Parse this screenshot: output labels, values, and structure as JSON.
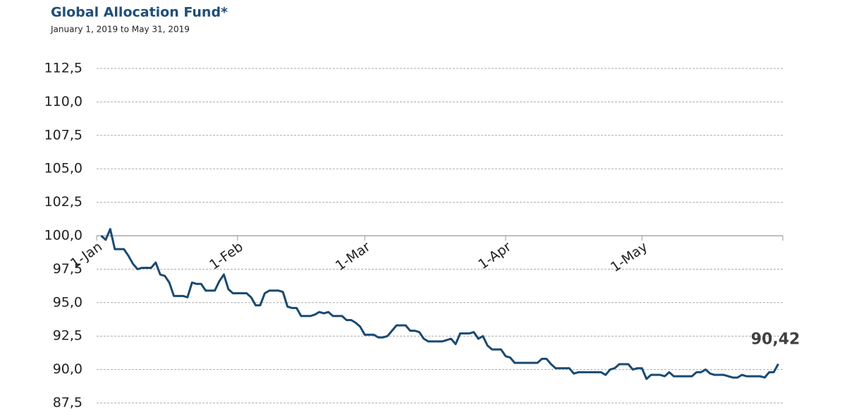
{
  "chart_data": {
    "type": "line",
    "title": "Global Allocation Fund*",
    "subtitle": "January 1, 2019 to May 31, 2019",
    "x": [
      1,
      2,
      3,
      4,
      5,
      6,
      7,
      8,
      9,
      10,
      11,
      12,
      13,
      14,
      15,
      16,
      17,
      18,
      19,
      20,
      21,
      22,
      23,
      24,
      25,
      26,
      27,
      28,
      29,
      30,
      31,
      32,
      33,
      34,
      35,
      36,
      37,
      38,
      39,
      40,
      41,
      42,
      43,
      44,
      45,
      46,
      47,
      48,
      49,
      50,
      51,
      52,
      53,
      54,
      55,
      56,
      57,
      58,
      59,
      60,
      61,
      62,
      63,
      64,
      65,
      66,
      67,
      68,
      69,
      70,
      71,
      72,
      73,
      74,
      75,
      76,
      77,
      78,
      79,
      80,
      81,
      82,
      83,
      84,
      85,
      86,
      87,
      88,
      89,
      90,
      91,
      92,
      93,
      94,
      95,
      96,
      97,
      98,
      99,
      100,
      101,
      102,
      103,
      104,
      105,
      106,
      107,
      108,
      109,
      110,
      111,
      112,
      113,
      114,
      115,
      116,
      117,
      118,
      119,
      120,
      121,
      122,
      123,
      124,
      125,
      126,
      127,
      128,
      129,
      130,
      131,
      132,
      133,
      134,
      135,
      136,
      137,
      138,
      139,
      140,
      141,
      142,
      143,
      144,
      145,
      146,
      147,
      148,
      149,
      150
    ],
    "series": [
      {
        "color": "#1a4a72",
        "values": [
          100.0,
          99.7,
          100.5,
          99.0,
          99.0,
          99.0,
          98.5,
          97.9,
          97.5,
          97.6,
          97.6,
          97.6,
          98.0,
          97.1,
          97.0,
          96.5,
          95.5,
          95.5,
          95.5,
          95.4,
          96.5,
          96.4,
          96.4,
          95.9,
          95.9,
          95.9,
          96.6,
          97.1,
          96.0,
          95.7,
          95.7,
          95.7,
          95.7,
          95.4,
          94.8,
          94.8,
          95.7,
          95.9,
          95.9,
          95.9,
          95.8,
          94.7,
          94.6,
          94.6,
          94.0,
          94.0,
          94.0,
          94.1,
          94.3,
          94.2,
          94.3,
          94.0,
          94.0,
          94.0,
          93.7,
          93.7,
          93.5,
          93.2,
          92.6,
          92.6,
          92.6,
          92.4,
          92.4,
          92.5,
          92.9,
          93.3,
          93.3,
          93.3,
          92.9,
          92.9,
          92.8,
          92.3,
          92.1,
          92.1,
          92.1,
          92.1,
          92.2,
          92.3,
          91.9,
          92.7,
          92.7,
          92.7,
          92.8,
          92.3,
          92.5,
          91.8,
          91.5,
          91.5,
          91.5,
          91.0,
          90.9,
          90.5,
          90.5,
          90.5,
          90.5,
          90.5,
          90.5,
          90.8,
          90.8,
          90.4,
          90.1,
          90.1,
          90.1,
          90.1,
          89.7,
          89.8,
          89.8,
          89.8,
          89.8,
          89.8,
          89.8,
          89.6,
          90.0,
          90.1,
          90.4,
          90.4,
          90.4,
          90.0,
          90.1,
          90.1,
          89.3,
          89.6,
          89.6,
          89.6,
          89.5,
          89.8,
          89.5,
          89.5,
          89.5,
          89.5,
          89.5,
          89.8,
          89.8,
          90.0,
          89.7,
          89.6,
          89.6,
          89.6,
          89.5,
          89.4,
          89.4,
          89.6,
          89.5,
          89.5,
          89.5,
          89.5,
          89.4,
          89.8,
          89.8,
          90.42
        ]
      }
    ],
    "annotation": "90,42",
    "xlim": [
      0,
      151
    ],
    "xticks": [
      {
        "value": 0,
        "label": "1-Jan"
      },
      {
        "value": 31,
        "label": "1-Feb"
      },
      {
        "value": 59,
        "label": "1-Mar"
      },
      {
        "value": 90,
        "label": "1-Apr"
      },
      {
        "value": 120,
        "label": "1-May"
      }
    ],
    "x_axis_crossing": 100,
    "ylim": [
      87.5,
      112.5
    ],
    "yticks": [
      {
        "value": 87.5,
        "label": "87,5"
      },
      {
        "value": 90,
        "label": "90,0"
      },
      {
        "value": 92.5,
        "label": "92,5"
      },
      {
        "value": 95,
        "label": "95,0"
      },
      {
        "value": 97.5,
        "label": "97,5"
      },
      {
        "value": 100,
        "label": "100,0"
      },
      {
        "value": 102.5,
        "label": "102,5"
      },
      {
        "value": 105,
        "label": "105,0"
      },
      {
        "value": 107.5,
        "label": "107,5"
      },
      {
        "value": 110,
        "label": "110,0"
      },
      {
        "value": 112.5,
        "label": "112,5"
      }
    ],
    "grid": true
  }
}
